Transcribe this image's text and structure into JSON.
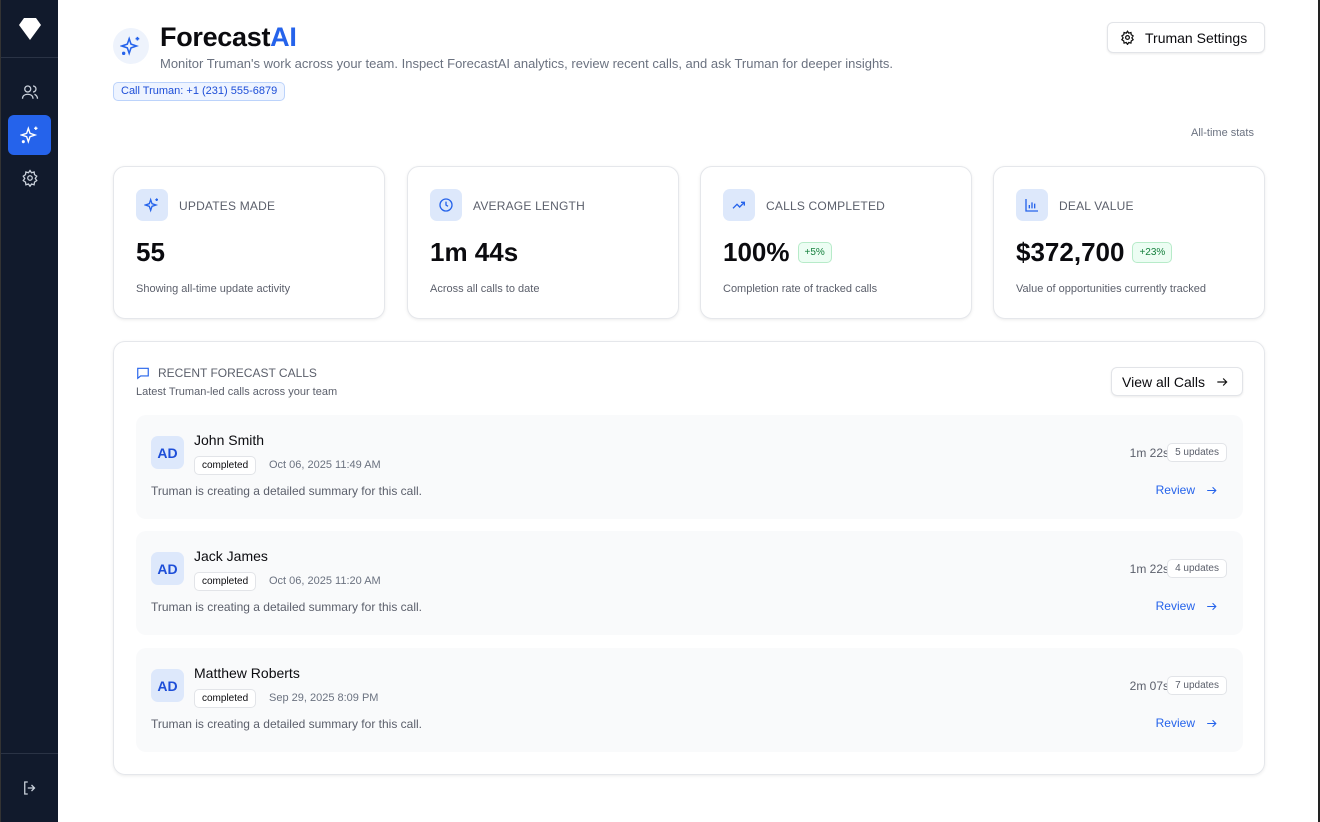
{
  "sidebar": {
    "items": [
      {
        "icon": "users-icon"
      },
      {
        "icon": "sparkles-icon",
        "active": true
      },
      {
        "icon": "gear-icon"
      }
    ],
    "logout_icon": "logout-icon"
  },
  "header": {
    "title": "Forecast",
    "title_accent": "AI",
    "subtitle": "Monitor Truman's work across your team. Inspect ForecastAI analytics, review recent calls, and ask Truman for deeper insights.",
    "call_pill": "Call Truman: +1 (231) 555-6879",
    "settings_label": "Truman Settings",
    "stats_scope": "All-time stats"
  },
  "colors": {
    "accent": "#2563eb",
    "sidebar": "#111a2c",
    "positive": "#15803d"
  },
  "stats": [
    {
      "icon": "sparkles-icon",
      "label": "UPDATES MADE",
      "value": "55",
      "badge": "",
      "desc": "Showing all-time update activity"
    },
    {
      "icon": "clock-icon",
      "label": "AVERAGE LENGTH",
      "value": "1m 44s",
      "badge": "",
      "desc": "Across all calls to date"
    },
    {
      "icon": "trending-up-icon",
      "label": "CALLS COMPLETED",
      "value": "100%",
      "badge": "+5%",
      "desc": "Completion rate of tracked calls"
    },
    {
      "icon": "bar-chart-icon",
      "label": "DEAL VALUE",
      "value": "$372,700",
      "badge": "+23%",
      "desc": "Value of opportunities currently tracked"
    }
  ],
  "recent": {
    "title": "RECENT FORECAST CALLS",
    "subtitle": "Latest Truman-led calls across your team",
    "view_all": "View all Calls",
    "calls": [
      {
        "initials": "AD",
        "name": "John Smith",
        "status": "completed",
        "date": "Oct 06, 2025 11:49 AM",
        "summary": "Truman is creating a detailed summary for this call.",
        "duration": "1m 22s",
        "updates": "5 updates",
        "action": "Review"
      },
      {
        "initials": "AD",
        "name": "Jack James",
        "status": "completed",
        "date": "Oct 06, 2025 11:20 AM",
        "summary": "Truman is creating a detailed summary for this call.",
        "duration": "1m 22s",
        "updates": "4 updates",
        "action": "Review"
      },
      {
        "initials": "AD",
        "name": "Matthew Roberts",
        "status": "completed",
        "date": "Sep 29, 2025 8:09 PM",
        "summary": "Truman is creating a detailed summary for this call.",
        "duration": "2m 07s",
        "updates": "7 updates",
        "action": "Review"
      }
    ]
  }
}
